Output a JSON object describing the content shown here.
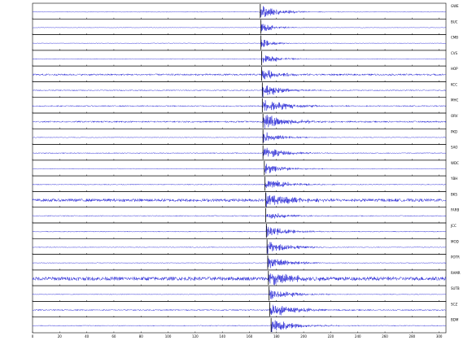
{
  "chart_data": {
    "type": "seismogram",
    "xlim": [
      0,
      305
    ],
    "xticks": [
      0,
      20,
      40,
      60,
      80,
      100,
      120,
      140,
      160,
      180,
      200,
      220,
      240,
      260,
      280,
      300
    ],
    "ylim": [
      -1,
      1
    ],
    "color": "#1010d0",
    "series": [
      {
        "name": "GWE",
        "arrival": 168,
        "amplitude": 0.9,
        "noise": 0.05,
        "decay": 14
      },
      {
        "name": "BUC",
        "arrival": 168.5,
        "amplitude": 0.7,
        "noise": 0.04,
        "decay": 10
      },
      {
        "name": "CMB",
        "arrival": 168.5,
        "amplitude": 0.8,
        "noise": 0.04,
        "decay": 8
      },
      {
        "name": "CVS",
        "arrival": 169,
        "amplitude": 0.6,
        "noise": 0.05,
        "decay": 14
      },
      {
        "name": "HOP",
        "arrival": 169,
        "amplitude": 0.8,
        "noise": 0.12,
        "decay": 12
      },
      {
        "name": "KCC",
        "arrival": 169.5,
        "amplitude": 0.9,
        "noise": 0.07,
        "decay": 14
      },
      {
        "name": "MHC",
        "arrival": 169.5,
        "amplitude": 0.95,
        "noise": 0.08,
        "decay": 18
      },
      {
        "name": "ORV",
        "arrival": 170,
        "amplitude": 0.95,
        "noise": 0.1,
        "decay": 18
      },
      {
        "name": "PKD",
        "arrival": 170,
        "amplitude": 0.7,
        "noise": 0.05,
        "decay": 14
      },
      {
        "name": "SAO",
        "arrival": 170,
        "amplitude": 0.8,
        "noise": 0.06,
        "decay": 16
      },
      {
        "name": "WDC",
        "arrival": 171,
        "amplitude": 0.7,
        "noise": 0.05,
        "decay": 14
      },
      {
        "name": "YBH",
        "arrival": 171.5,
        "amplitude": 0.9,
        "noise": 0.06,
        "decay": 16
      },
      {
        "name": "BKS",
        "arrival": 172,
        "amplitude": 0.95,
        "noise": 0.2,
        "decay": 18
      },
      {
        "name": "FARB",
        "arrival": 172,
        "amplitude": 0.6,
        "noise": 0.06,
        "decay": 14
      },
      {
        "name": "JCC",
        "arrival": 172.5,
        "amplitude": 0.8,
        "noise": 0.06,
        "decay": 14
      },
      {
        "name": "MOD",
        "arrival": 173,
        "amplitude": 0.9,
        "noise": 0.05,
        "decay": 16
      },
      {
        "name": "POTR",
        "arrival": 173.5,
        "amplitude": 0.8,
        "noise": 0.05,
        "decay": 16
      },
      {
        "name": "RAMR",
        "arrival": 174,
        "amplitude": 0.95,
        "noise": 0.25,
        "decay": 18
      },
      {
        "name": "SUTB",
        "arrival": 174.5,
        "amplitude": 0.8,
        "noise": 0.05,
        "decay": 16
      },
      {
        "name": "SCZ",
        "arrival": 175,
        "amplitude": 0.95,
        "noise": 0.08,
        "decay": 18
      },
      {
        "name": "BDM",
        "arrival": 176,
        "amplitude": 0.85,
        "noise": 0.06,
        "decay": 18
      }
    ]
  }
}
